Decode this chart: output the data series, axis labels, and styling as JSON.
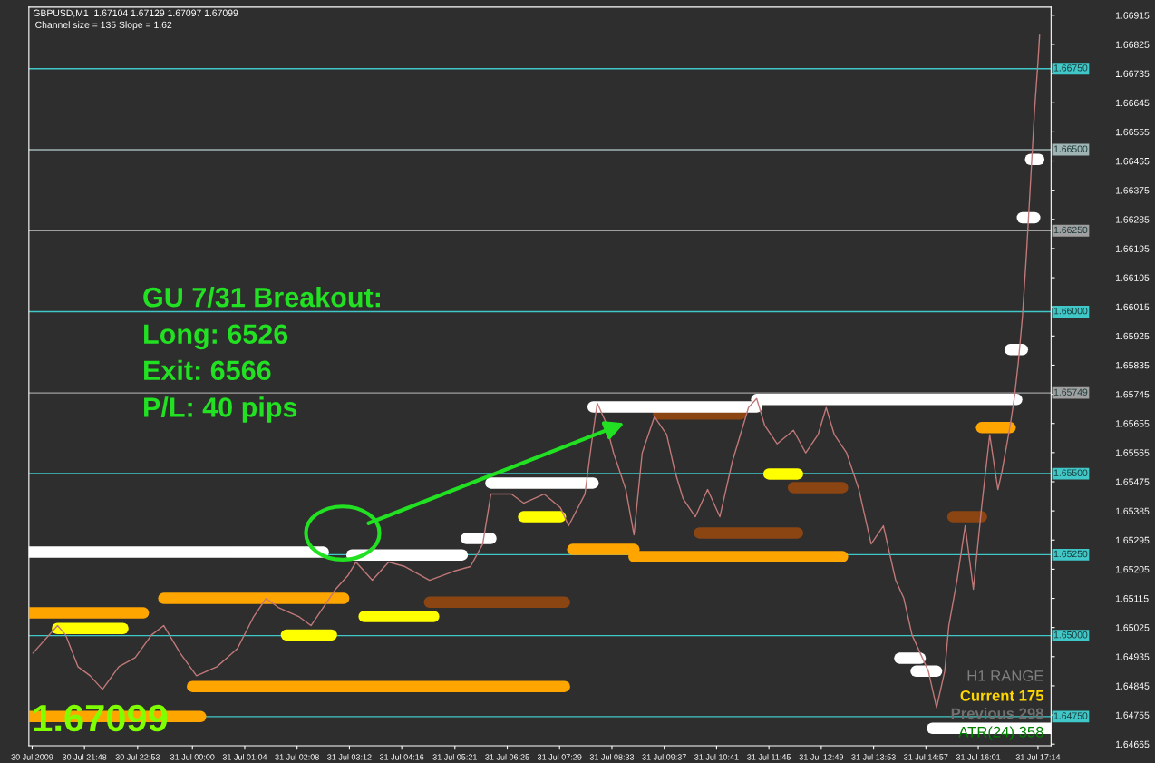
{
  "chart_data": {
    "type": "line",
    "title": "GBPUSD,M1  1.67104 1.67129 1.67097 1.67099",
    "subtitle": "Channel size = 135 Slope = 1.62",
    "annotations": [
      "GU 7/31 Breakout:",
      "Long: 6526",
      "Exit: 6566",
      "P/L: 40 pips",
      "1.67099",
      "H1 RANGE",
      "Current 175",
      "Previous 298",
      "ATR(24) 358"
    ],
    "xlim": [
      "2009-07-30T20:40",
      "2009-07-31T17:30"
    ],
    "ylim": [
      1.6466,
      1.6694
    ],
    "xticks": [
      {
        "value": "2009-07-30T20:44",
        "label": "30 Jul 2009"
      },
      {
        "value": "2009-07-30T21:48",
        "label": "30 Jul 21:48"
      },
      {
        "value": "2009-07-30T22:53",
        "label": "30 Jul 22:53"
      },
      {
        "value": "2009-07-31T00:00",
        "label": "31 Jul 00:00"
      },
      {
        "value": "2009-07-31T01:04",
        "label": "31 Jul 01:04"
      },
      {
        "value": "2009-07-31T02:08",
        "label": "31 Jul 02:08"
      },
      {
        "value": "2009-07-31T03:12",
        "label": "31 Jul 03:12"
      },
      {
        "value": "2009-07-31T04:16",
        "label": "31 Jul 04:16"
      },
      {
        "value": "2009-07-31T05:21",
        "label": "31 Jul 05:21"
      },
      {
        "value": "2009-07-31T06:25",
        "label": "31 Jul 06:25"
      },
      {
        "value": "2009-07-31T07:29",
        "label": "31 Jul 07:29"
      },
      {
        "value": "2009-07-31T08:33",
        "label": "31 Jul 08:33"
      },
      {
        "value": "2009-07-31T09:37",
        "label": "31 Jul 09:37"
      },
      {
        "value": "2009-07-31T10:41",
        "label": "31 Jul 10:41"
      },
      {
        "value": "2009-07-31T11:45",
        "label": "31 Jul 11:45"
      },
      {
        "value": "2009-07-31T12:49",
        "label": "31 Jul 12:49"
      },
      {
        "value": "2009-07-31T13:53",
        "label": "31 Jul 13:53"
      },
      {
        "value": "2009-07-31T14:57",
        "label": "31 Jul 14:57"
      },
      {
        "value": "2009-07-31T16:01",
        "label": "31 Jul 16:01"
      },
      {
        "value": "2009-07-31T17:14",
        "label": "31 Jul 17:14"
      }
    ],
    "yticks": [
      1.66915,
      1.66825,
      1.66735,
      1.66645,
      1.66555,
      1.66465,
      1.66375,
      1.66285,
      1.66195,
      1.66105,
      1.66015,
      1.65925,
      1.65835,
      1.65745,
      1.65655,
      1.65565,
      1.65475,
      1.65385,
      1.65295,
      1.65205,
      1.65115,
      1.65025,
      1.64935,
      1.64845,
      1.64755,
      1.64665
    ],
    "ref_lines": [
      {
        "axis": "y",
        "value": 1.6675,
        "label": "1.66750",
        "color": "#40c8c8"
      },
      {
        "axis": "y",
        "value": 1.665,
        "label": "1.66500",
        "color": "#a0b4b4"
      },
      {
        "axis": "y",
        "value": 1.6625,
        "label": "1.66250",
        "color": "#a0a0a0"
      },
      {
        "axis": "y",
        "value": 1.66,
        "label": "1.66000",
        "color": "#40c8c8"
      },
      {
        "axis": "y",
        "value": 1.65749,
        "label": "1.65749",
        "color": "#a0a0a0"
      },
      {
        "axis": "y",
        "value": 1.655,
        "label": "1.65500",
        "color": "#40c8c8"
      },
      {
        "axis": "y",
        "value": 1.6525,
        "label": "1.65250",
        "color": "#40c8c8"
      },
      {
        "axis": "y",
        "value": 1.65,
        "label": "1.65000",
        "color": "#40c8c8"
      },
      {
        "axis": "y",
        "value": 1.6475,
        "label": "1.64750",
        "color": "#40c8c8"
      }
    ],
    "series": [
      {
        "color": "#c07878",
        "x": [
          "2009-07-30T20:45",
          "2009-07-30T21:15",
          "2009-07-30T21:25",
          "2009-07-30T21:40",
          "2009-07-30T21:55",
          "2009-07-30T22:10",
          "2009-07-30T22:30",
          "2009-07-30T22:50",
          "2009-07-30T23:10",
          "2009-07-30T23:25",
          "2009-07-30T23:45",
          "2009-07-31T00:05",
          "2009-07-31T00:30",
          "2009-07-31T00:55",
          "2009-07-31T01:15",
          "2009-07-31T01:30",
          "2009-07-31T01:45",
          "2009-07-31T02:10",
          "2009-07-31T02:25",
          "2009-07-31T02:40",
          "2009-07-31T02:55",
          "2009-07-31T03:10",
          "2009-07-31T03:20",
          "2009-07-31T03:40",
          "2009-07-31T04:00",
          "2009-07-31T04:20",
          "2009-07-31T04:50",
          "2009-07-31T05:20",
          "2009-07-31T05:40",
          "2009-07-31T05:55",
          "2009-07-31T06:05",
          "2009-07-31T06:30",
          "2009-07-31T06:45",
          "2009-07-31T07:10",
          "2009-07-31T07:30",
          "2009-07-31T07:40",
          "2009-07-31T08:00",
          "2009-07-31T08:08",
          "2009-07-31T08:15",
          "2009-07-31T08:25",
          "2009-07-31T08:35",
          "2009-07-31T08:50",
          "2009-07-31T09:00",
          "2009-07-31T09:10",
          "2009-07-31T09:25",
          "2009-07-31T09:40",
          "2009-07-31T09:50",
          "2009-07-31T10:00",
          "2009-07-31T10:15",
          "2009-07-31T10:30",
          "2009-07-31T10:45",
          "2009-07-31T11:00",
          "2009-07-31T11:20",
          "2009-07-31T11:30",
          "2009-07-31T11:40",
          "2009-07-31T11:55",
          "2009-07-31T12:15",
          "2009-07-31T12:30",
          "2009-07-31T12:45",
          "2009-07-31T12:55",
          "2009-07-31T13:05",
          "2009-07-31T13:20",
          "2009-07-31T13:35",
          "2009-07-31T13:50",
          "2009-07-31T14:05",
          "2009-07-31T14:20",
          "2009-07-31T14:30",
          "2009-07-31T14:40",
          "2009-07-31T14:50",
          "2009-07-31T15:00",
          "2009-07-31T15:10",
          "2009-07-31T15:20",
          "2009-07-31T15:25",
          "2009-07-31T15:35",
          "2009-07-31T15:45",
          "2009-07-31T15:55",
          "2009-07-31T16:05",
          "2009-07-31T16:15",
          "2009-07-31T16:25",
          "2009-07-31T16:30",
          "2009-07-31T16:40",
          "2009-07-31T16:45",
          "2009-07-31T16:50",
          "2009-07-31T16:55",
          "2009-07-31T17:00",
          "2009-07-31T17:05",
          "2009-07-31T17:10",
          "2009-07-31T17:14",
          "2009-07-31T17:16"
        ],
        "values": [
          1.64946,
          1.65031,
          1.65002,
          1.64904,
          1.64876,
          1.64834,
          1.64904,
          1.64932,
          1.65002,
          1.65031,
          1.64946,
          1.64876,
          1.64904,
          1.6496,
          1.65059,
          1.65115,
          1.65087,
          1.65059,
          1.65031,
          1.65087,
          1.65143,
          1.65185,
          1.65227,
          1.65171,
          1.65227,
          1.65213,
          1.65171,
          1.65199,
          1.65213,
          1.65283,
          1.65437,
          1.65437,
          1.65409,
          1.65437,
          1.65395,
          1.65339,
          1.65437,
          1.65592,
          1.65718,
          1.65662,
          1.65564,
          1.65451,
          1.65311,
          1.65564,
          1.65676,
          1.6562,
          1.65507,
          1.65423,
          1.65367,
          1.65451,
          1.65367,
          1.65535,
          1.65704,
          1.65732,
          1.65648,
          1.65592,
          1.65634,
          1.65564,
          1.6562,
          1.65704,
          1.6562,
          1.65564,
          1.65451,
          1.65283,
          1.65339,
          1.65171,
          1.65115,
          1.65002,
          1.64946,
          1.6489,
          1.64778,
          1.6489,
          1.65031,
          1.65171,
          1.65339,
          1.65143,
          1.65395,
          1.6562,
          1.65451,
          1.65507,
          1.65648,
          1.65732,
          1.65844,
          1.65984,
          1.66181,
          1.66405,
          1.66629,
          1.6677,
          1.66854
        ]
      },
      {
        "color": "#ffa500",
        "x": [
          "2009-07-30T20:40",
          "2009-07-30T23:00",
          null,
          "2009-07-30T20:40",
          "2009-07-31T00:10",
          null,
          "2009-07-30T23:25",
          "2009-07-31T03:05",
          null,
          "2009-07-31T00:00",
          "2009-07-31T07:35",
          null,
          "2009-07-31T07:45",
          "2009-07-31T09:00",
          null,
          "2009-07-31T09:00",
          "2009-07-31T13:15",
          null,
          "2009-07-31T16:05",
          "2009-07-31T16:40"
        ],
        "values": [
          1.6507,
          1.6507,
          null,
          1.6475,
          1.6475,
          null,
          1.65115,
          1.65115,
          null,
          1.64843,
          1.64843,
          null,
          1.65266,
          1.65266,
          null,
          1.65244,
          1.65244,
          null,
          1.65642,
          1.65642
        ]
      },
      {
        "color": "#8b4513",
        "x": [
          "2009-07-31T04:50",
          "2009-07-31T07:35",
          null,
          "2009-07-31T09:30",
          "2009-07-31T11:10",
          null,
          "2009-07-31T10:20",
          "2009-07-31T12:20",
          null,
          "2009-07-31T12:15",
          "2009-07-31T13:15",
          null,
          "2009-07-31T15:30",
          "2009-07-31T16:05"
        ],
        "values": [
          1.65103,
          1.65103,
          null,
          1.65684,
          1.65684,
          null,
          1.65317,
          1.65317,
          null,
          1.65457,
          1.65457,
          null,
          1.65367,
          1.65367
        ]
      },
      {
        "color": "#ffff00",
        "x": [
          "2009-07-30T21:15",
          "2009-07-30T22:35",
          null,
          "2009-07-31T01:55",
          "2009-07-31T02:50",
          null,
          "2009-07-31T03:30",
          "2009-07-31T04:55",
          null,
          "2009-07-31T06:45",
          "2009-07-31T07:30",
          null,
          "2009-07-31T11:45",
          "2009-07-31T12:20"
        ],
        "values": [
          1.65022,
          1.65022,
          null,
          1.65002,
          1.65002,
          null,
          1.65059,
          1.65059,
          null,
          1.65367,
          1.65367,
          null,
          1.65499,
          1.65499
        ]
      },
      {
        "color": "#ffffff",
        "x": [
          "2009-07-30T20:40",
          "2009-07-31T02:40",
          null,
          "2009-07-31T03:15",
          "2009-07-31T05:30",
          null,
          "2009-07-31T05:35",
          "2009-07-31T06:05",
          null,
          "2009-07-31T06:05",
          "2009-07-31T08:10",
          null,
          "2009-07-31T08:10",
          "2009-07-31T11:30",
          null,
          "2009-07-31T11:30",
          "2009-07-31T16:48",
          null,
          "2009-07-31T14:25",
          "2009-07-31T14:50",
          null,
          "2009-07-31T14:45",
          "2009-07-31T15:10",
          null,
          "2009-07-31T15:05",
          "2009-07-31T17:30",
          null,
          "2009-07-31T16:40",
          "2009-07-31T16:55",
          null,
          "2009-07-31T16:55",
          "2009-07-31T17:10",
          null,
          "2009-07-31T17:05",
          "2009-07-31T17:15"
        ],
        "values": [
          1.65258,
          1.65258,
          null,
          1.65249,
          1.65249,
          null,
          1.653,
          1.653,
          null,
          1.65471,
          1.65471,
          null,
          1.65706,
          1.65706,
          null,
          1.65729,
          1.65729,
          null,
          1.6493,
          1.6493,
          null,
          1.6489,
          1.6489,
          null,
          1.64714,
          1.64714,
          null,
          1.65883,
          1.65883,
          null,
          1.6629,
          1.6629,
          null,
          1.6647,
          1.6647
        ]
      }
    ]
  }
}
